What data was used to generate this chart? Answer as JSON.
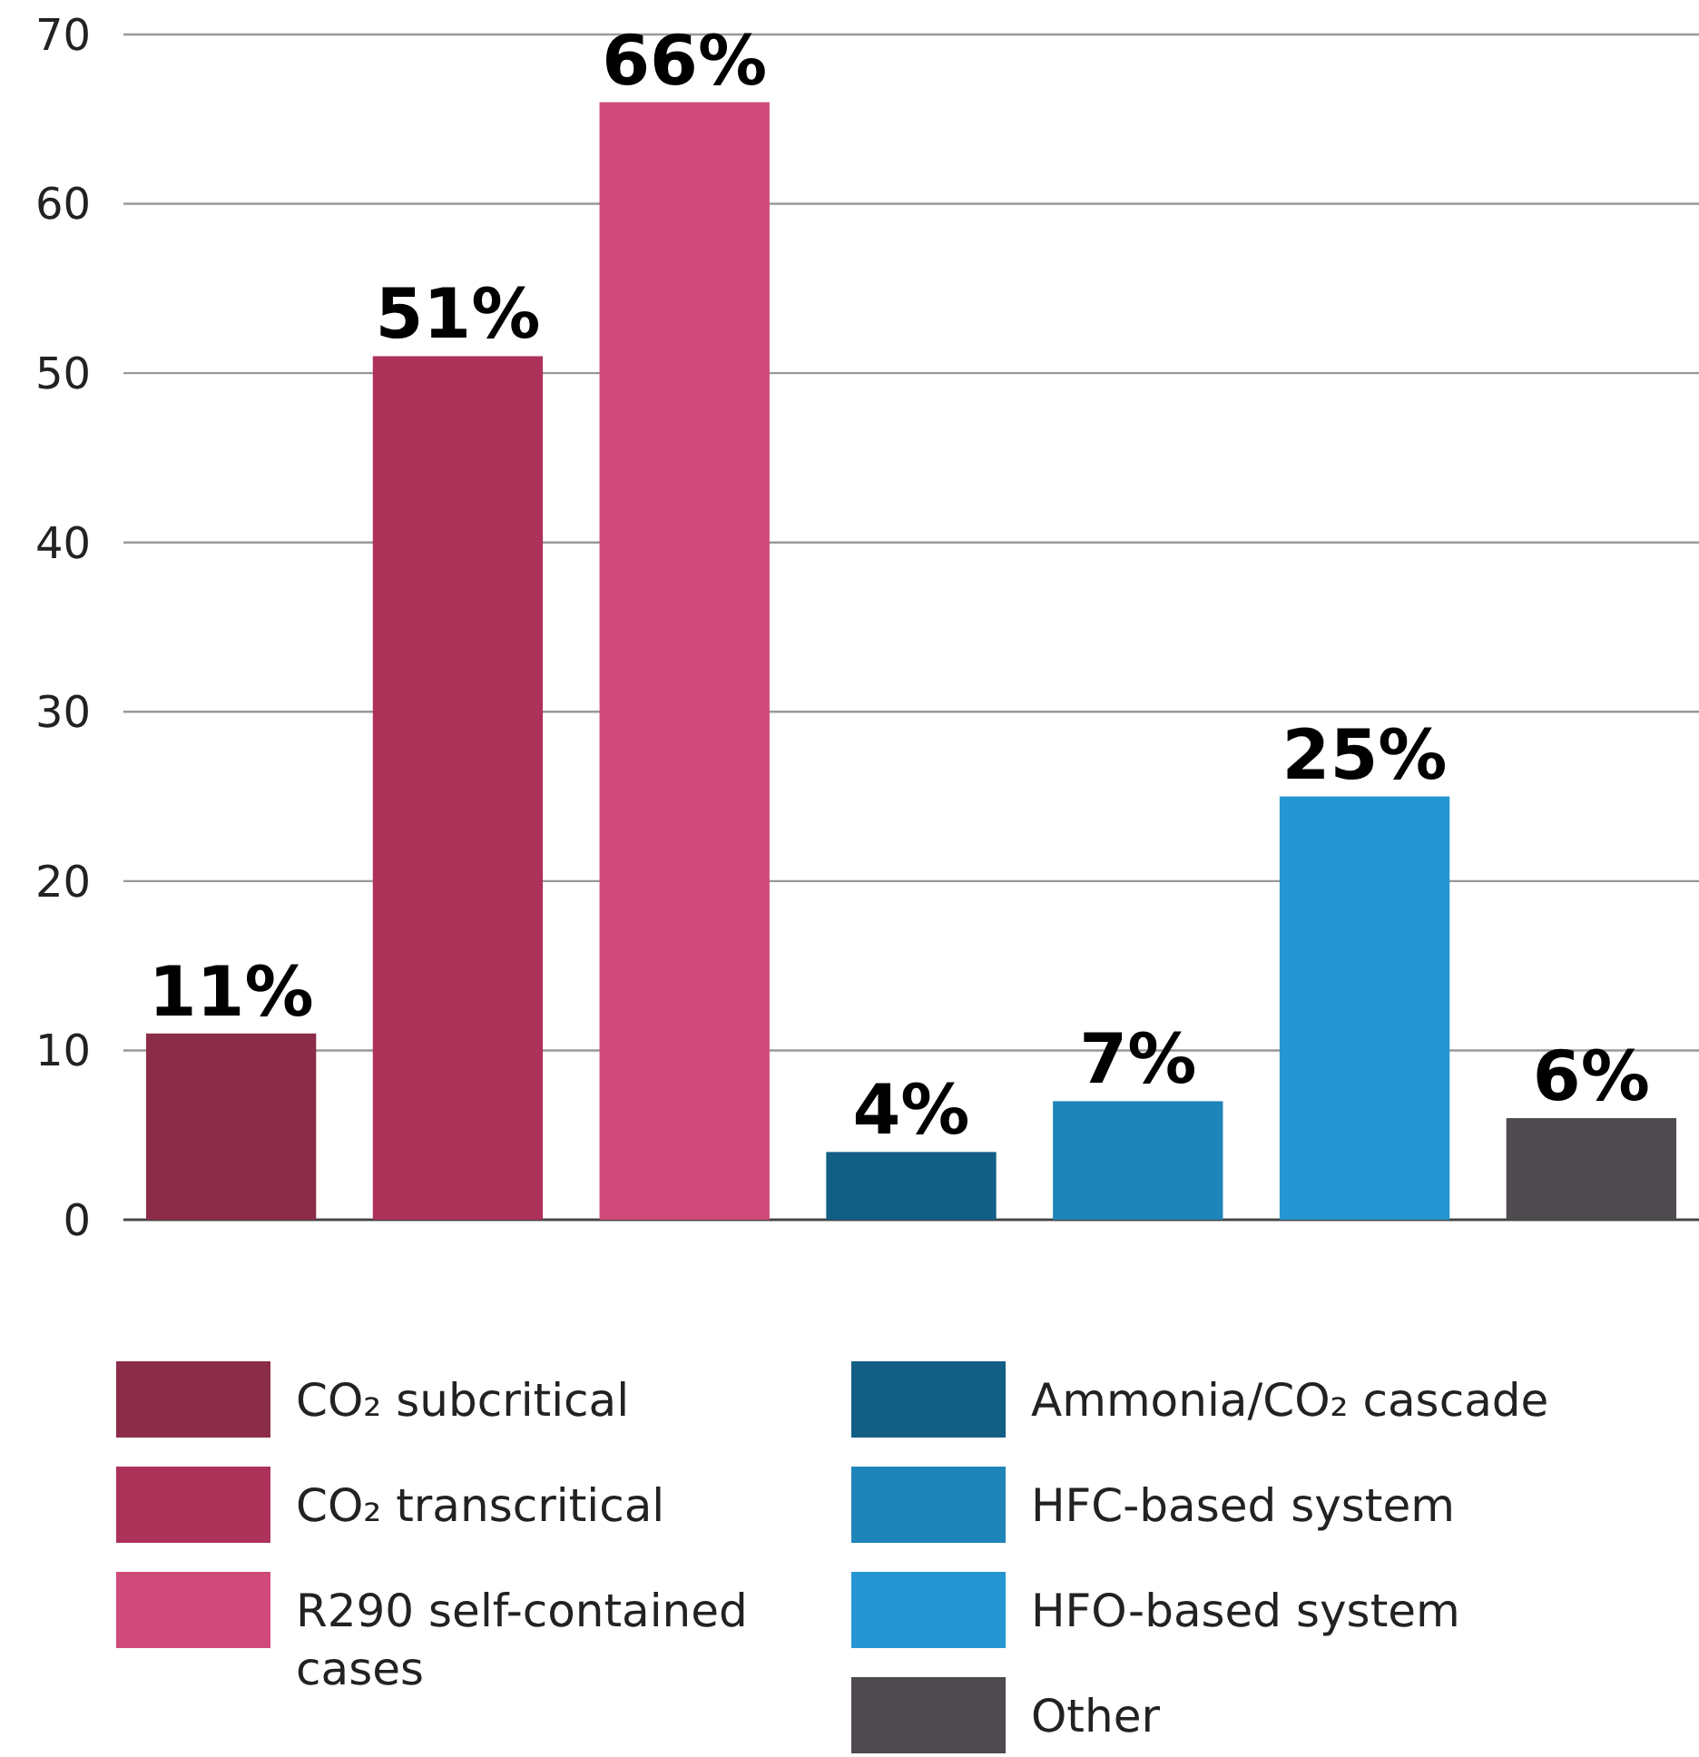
{
  "chart_data": {
    "type": "bar",
    "categories": [
      null
    ],
    "ylim": [
      0,
      70
    ],
    "yticks": [
      0,
      10,
      20,
      30,
      40,
      50,
      60,
      70
    ],
    "grid": "y",
    "legend": "bottom",
    "series": [
      {
        "name": "CO₂ subcritical",
        "color": "#8b2c48",
        "values": [
          11
        ],
        "value_labels": [
          "11%"
        ]
      },
      {
        "name": "CO₂ transcritical",
        "color": "#ad3259",
        "values": [
          51
        ],
        "value_labels": [
          "51%"
        ]
      },
      {
        "name": "R290 self-contained cases",
        "color": "#cf4a7a",
        "values": [
          66
        ],
        "value_labels": [
          "66%"
        ]
      },
      {
        "name": "Ammonia/CO₂ cascade",
        "color": "#125e85",
        "values": [
          4
        ],
        "value_labels": [
          "4%"
        ]
      },
      {
        "name": "HFC-based system",
        "color": "#1f84b8",
        "values": [
          7
        ],
        "value_labels": [
          "7%"
        ]
      },
      {
        "name": "HFO-based system",
        "color": "#2596d1",
        "values": [
          25
        ],
        "value_labels": [
          "25%"
        ]
      },
      {
        "name": "Other",
        "color": "#4e4a4f",
        "values": [
          6
        ],
        "value_labels": [
          "6%"
        ]
      }
    ]
  }
}
